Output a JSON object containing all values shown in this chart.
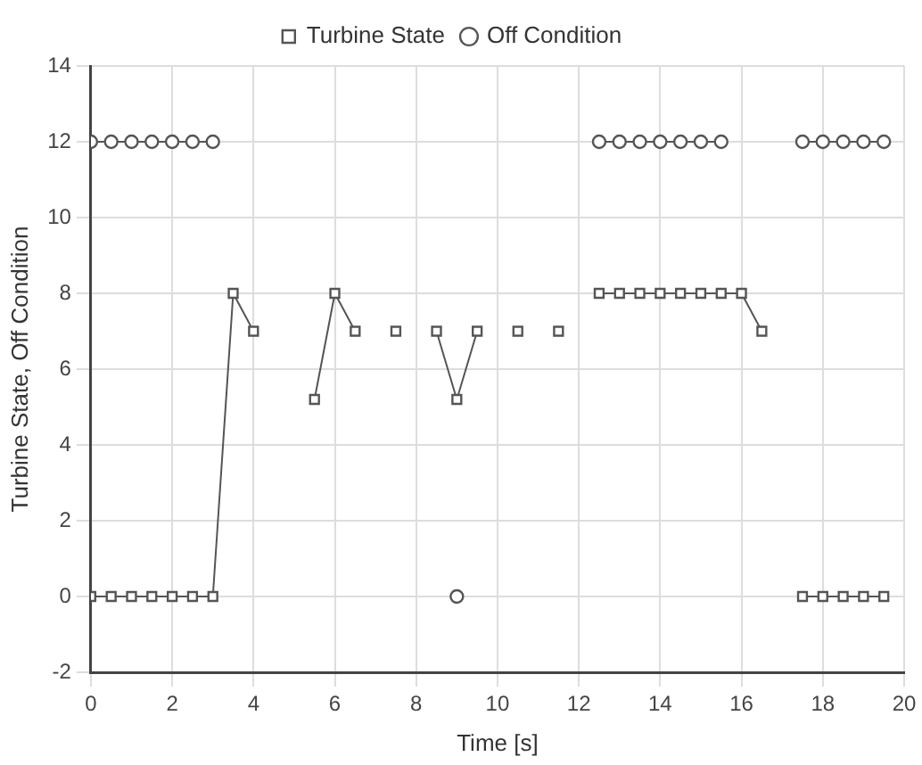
{
  "chart_data": {
    "type": "line",
    "xlabel": "Time [s]",
    "ylabel": "Turbine State, Off Condition",
    "x": [
      0,
      0.5,
      1,
      1.5,
      2,
      2.5,
      3,
      3.5,
      4,
      4.5,
      5,
      5.5,
      6,
      6.5,
      7,
      7.5,
      8,
      8.5,
      9,
      9.5,
      10,
      10.5,
      11,
      11.5,
      12,
      12.5,
      13,
      13.5,
      14,
      14.5,
      15,
      15.5,
      16,
      16.5,
      17,
      17.5,
      18,
      18.5,
      19,
      19.5
    ],
    "series": [
      {
        "name": "Turbine State",
        "color": "#555555",
        "marker": "square",
        "values": [
          0,
          0,
          0,
          0,
          0,
          0,
          0,
          8,
          7,
          null,
          null,
          5.2,
          8,
          7,
          null,
          7,
          null,
          7,
          5.2,
          7,
          null,
          7,
          null,
          7,
          null,
          8,
          8,
          8,
          8,
          8,
          8,
          8,
          8,
          7,
          null,
          0,
          0,
          0,
          0,
          0
        ]
      },
      {
        "name": "Off Condition",
        "color": "#555555",
        "marker": "circle",
        "values": [
          12,
          12,
          12,
          12,
          12,
          12,
          12,
          null,
          null,
          null,
          null,
          null,
          null,
          null,
          null,
          null,
          null,
          null,
          0,
          null,
          null,
          null,
          null,
          null,
          null,
          12,
          12,
          12,
          12,
          12,
          12,
          12,
          null,
          null,
          null,
          12,
          12,
          12,
          12,
          12
        ]
      }
    ],
    "xlim": [
      0,
      20
    ],
    "xticks": [
      0,
      2,
      4,
      6,
      8,
      10,
      12,
      14,
      16,
      18,
      20
    ],
    "ylim": [
      -2,
      14
    ],
    "yticks": [
      -2,
      0,
      2,
      4,
      6,
      8,
      10,
      12,
      14
    ],
    "grid": true,
    "legend": "top",
    "line_style": "solid"
  }
}
